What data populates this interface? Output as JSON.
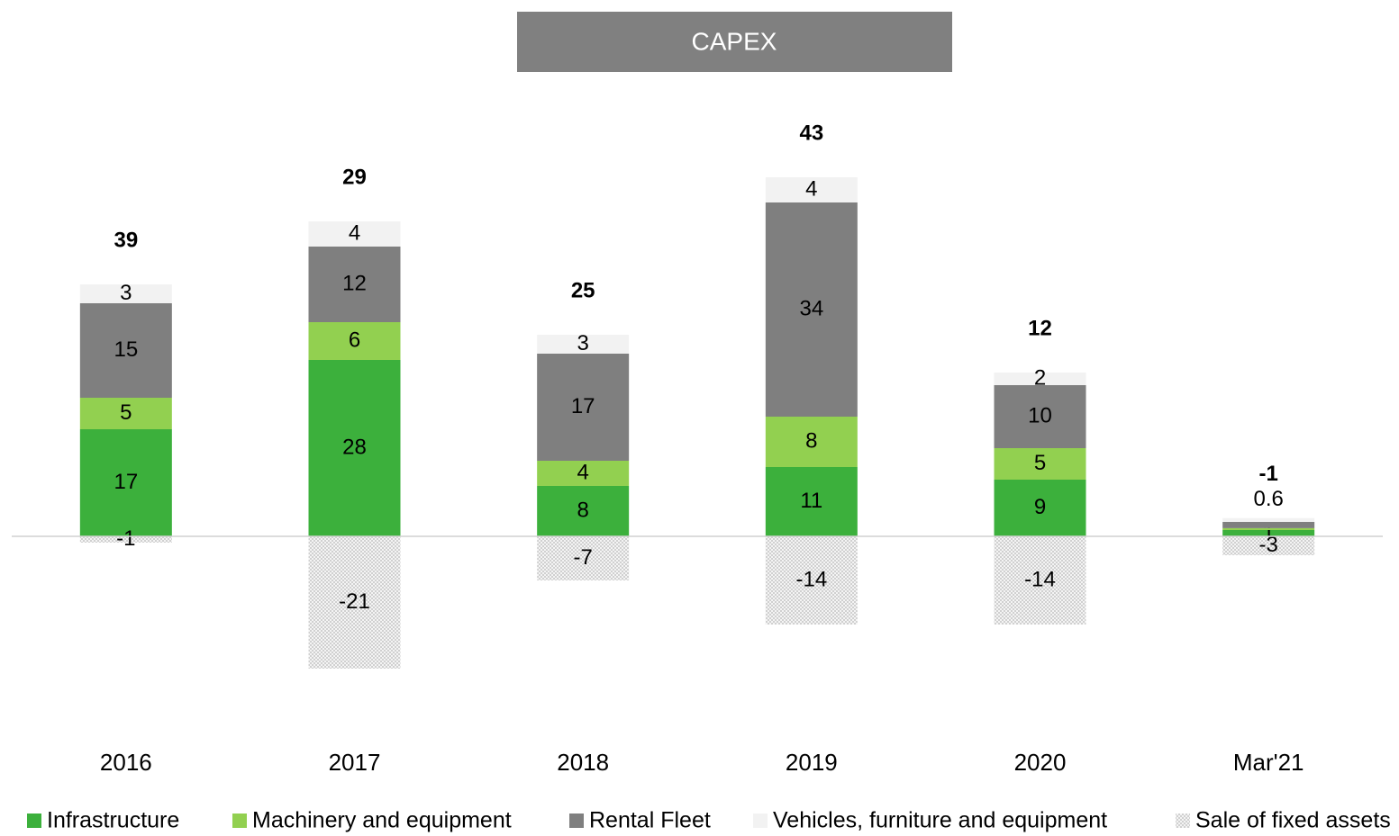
{
  "chart_data": {
    "type": "stacked_bar",
    "title": "CAPEX",
    "categories": [
      "2016",
      "2017",
      "2018",
      "2019",
      "2020",
      "Mar'21"
    ],
    "series": [
      {
        "name": "Infrastructure",
        "color": "#3cb03c",
        "values": [
          17,
          28,
          8,
          11,
          9,
          1
        ]
      },
      {
        "name": "Machinery and equipment",
        "color": "#92d050",
        "values": [
          5,
          6,
          4,
          8,
          5,
          0.3
        ],
        "value_labels": [
          "5",
          "6",
          "4",
          "8",
          "5",
          null
        ]
      },
      {
        "name": "Rental Fleet",
        "color": "#7f7f7f",
        "values": [
          15,
          12,
          17,
          34,
          10,
          1
        ],
        "value_labels": [
          "15",
          "12",
          "17",
          "34",
          "10",
          null
        ]
      },
      {
        "name": "Vehicles, furniture and equipment",
        "color": "#f2f2f2",
        "values": [
          3,
          4,
          3,
          4,
          2,
          0.6
        ]
      },
      {
        "name": "Sale of fixed assets",
        "color": "#d0d0d0",
        "pattern": "dots",
        "values": [
          -1,
          -21,
          -7,
          -14,
          -14,
          -3
        ]
      }
    ],
    "totals": [
      39,
      29,
      25,
      43,
      12,
      -1
    ],
    "ylim": [
      -30,
      80
    ],
    "legend": "bottom"
  }
}
